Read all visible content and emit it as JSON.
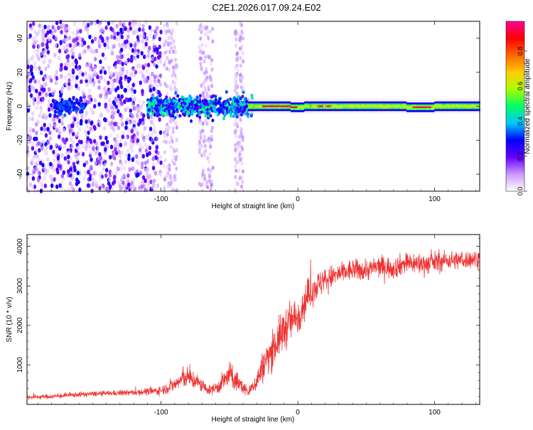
{
  "title": "C2E1.2026.017.09.24.E02",
  "chart_data": [
    {
      "type": "heatmap",
      "title": "",
      "xlabel": "Height of straight line (km)",
      "ylabel": "Frequency (Hz)",
      "xlim": [
        -198,
        133
      ],
      "ylim": [
        -50,
        50
      ],
      "x_ticks": [
        "-100",
        "0",
        "100"
      ],
      "x_tick_values": [
        -100,
        0,
        100
      ],
      "y_ticks": [
        "-40",
        "-20",
        "0",
        "20",
        "40"
      ],
      "y_tick_values": [
        -40,
        -20,
        0,
        20,
        40
      ],
      "colorbar": {
        "label": "Normalized spectral amplitude",
        "range": [
          0.0,
          0.97
        ],
        "ticks": [
          "0.0",
          "0.2",
          "0.4",
          "0.6",
          "0.8"
        ],
        "tick_values": [
          0.0,
          0.2,
          0.4,
          0.6,
          0.8
        ],
        "colors": [
          "#ffffff",
          "#cc99ff",
          "#6600ff",
          "#0000ff",
          "#00c8ff",
          "#00ff66",
          "#aaff00",
          "#ffcc00",
          "#ff6600",
          "#ff0000",
          "#ff0099"
        ]
      },
      "description_regions": [
        {
          "x_range": [
            -198,
            -100
          ],
          "freq_range": [
            -50,
            50
          ],
          "amplitude": [
            0.05,
            0.25
          ]
        },
        {
          "x_range": [
            -100,
            -35
          ],
          "freq_range": [
            -10,
            10
          ],
          "amplitude": [
            0.2,
            0.45
          ]
        },
        {
          "x_range": [
            -35,
            133
          ],
          "freq_range": [
            -2,
            2
          ],
          "amplitude": [
            0.5,
            0.95
          ]
        }
      ]
    },
    {
      "type": "line",
      "title": "",
      "xlabel": "Height of straight line (km)",
      "ylabel": "SNR (10 * v/v)",
      "xlim": [
        -198,
        133
      ],
      "ylim": [
        0,
        4300
      ],
      "x_ticks": [
        "-100",
        "0",
        "100"
      ],
      "x_tick_values": [
        -100,
        0,
        100
      ],
      "y_ticks": [
        "1000",
        "2000",
        "3000",
        "4000"
      ],
      "y_tick_values": [
        1000,
        2000,
        3000,
        4000
      ],
      "color": "#ee3333",
      "series": [
        {
          "name": "SNR",
          "x": [
            -198,
            -180,
            -160,
            -140,
            -120,
            -100,
            -90,
            -82,
            -75,
            -65,
            -58,
            -50,
            -42,
            -36,
            -30,
            -25,
            -20,
            -15,
            -10,
            -5,
            0,
            5,
            10,
            20,
            30,
            40,
            50,
            60,
            70,
            80,
            90,
            100,
            110,
            120,
            133
          ],
          "y": [
            180,
            200,
            250,
            280,
            300,
            350,
            500,
            700,
            600,
            350,
            450,
            750,
            500,
            300,
            600,
            1000,
            1300,
            1600,
            1900,
            2100,
            2250,
            2600,
            2900,
            3150,
            3300,
            3400,
            3400,
            3500,
            3450,
            3600,
            3550,
            3600,
            3650,
            3650,
            3700
          ],
          "noise": [
            60,
            60,
            70,
            70,
            80,
            120,
            200,
            300,
            250,
            120,
            200,
            350,
            250,
            120,
            300,
            450,
            500,
            550,
            600,
            550,
            500,
            500,
            450,
            350,
            300,
            300,
            300,
            300,
            300,
            300,
            300,
            300,
            250,
            250,
            250
          ]
        }
      ]
    }
  ]
}
